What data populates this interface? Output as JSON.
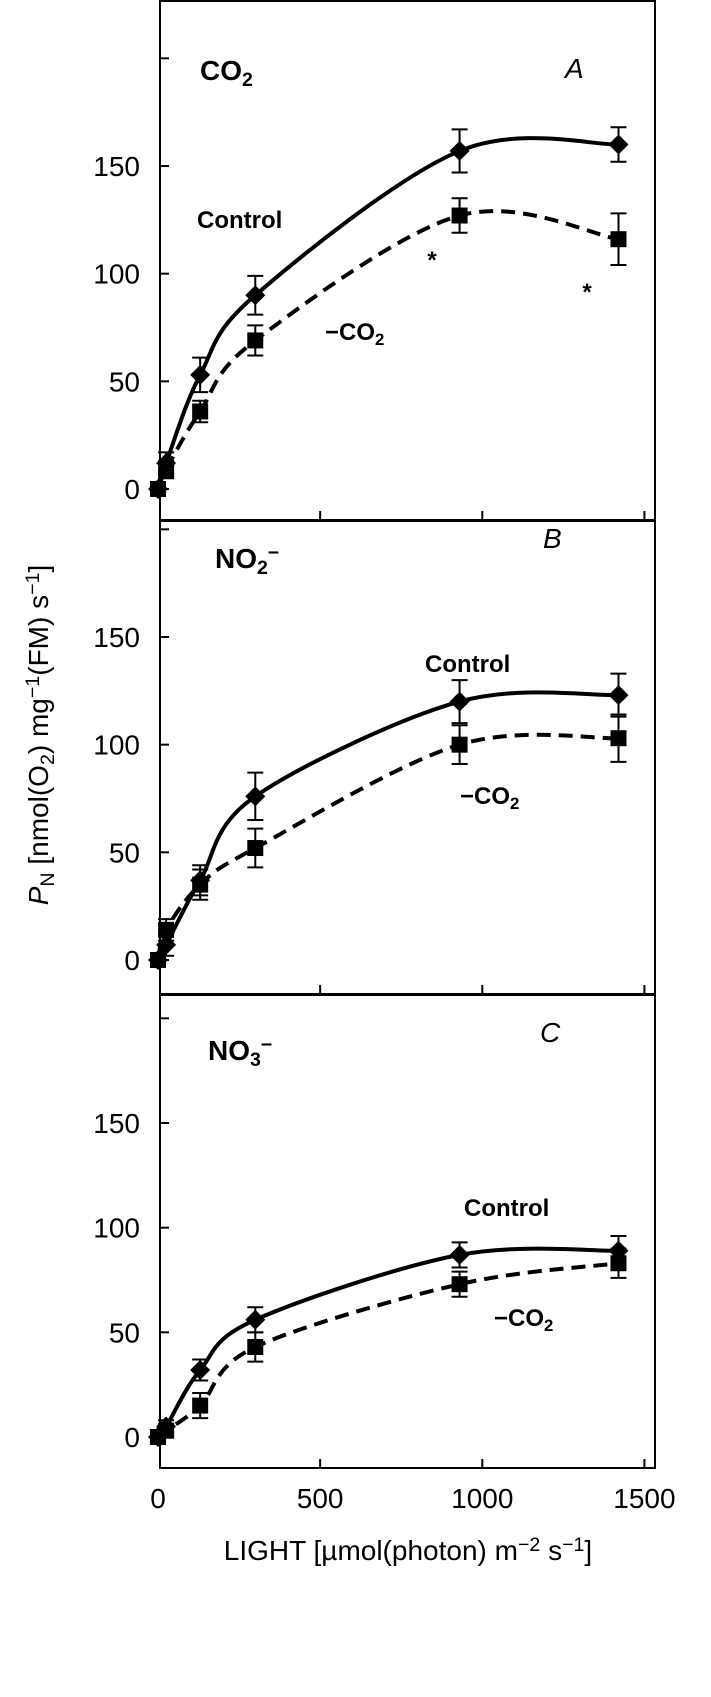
{
  "chart_data": {
    "type": "line",
    "xlabel": "LIGHT [µmol(photon) m⁻² s⁻¹]",
    "ylabel": "Pₙ [nmol(O₂) mg⁻¹(FM) s⁻¹]",
    "xlim": [
      0,
      1500
    ],
    "ylim": [
      0,
      150
    ],
    "x_ticks": [
      "0",
      "500",
      "1000",
      "1500"
    ],
    "y_ticks": [
      "0",
      "50",
      "100",
      "150"
    ],
    "legend": "none",
    "panels": [
      {
        "letter": "A",
        "title": "CO₂",
        "series": [
          {
            "name": "Control",
            "marker": "diamond",
            "line": "solid",
            "x": [
              0,
              25,
              130,
              300,
              930,
              1420
            ],
            "y": [
              0,
              12,
              53,
              90,
              157,
              160
            ],
            "err": [
              0,
              5,
              8,
              9,
              10,
              8
            ]
          },
          {
            "name": "−CO₂",
            "marker": "square",
            "line": "dashed",
            "x": [
              0,
              25,
              130,
              300,
              930,
              1420
            ],
            "y": [
              0,
              9,
              36,
              69,
              127,
              116
            ],
            "err": [
              0,
              4,
              5,
              7,
              8,
              12
            ]
          }
        ],
        "annotations": [
          "*",
          "*"
        ]
      },
      {
        "letter": "B",
        "title": "NO₂⁻",
        "series": [
          {
            "name": "Control",
            "marker": "diamond",
            "line": "solid",
            "x": [
              0,
              25,
              130,
              300,
              930,
              1420
            ],
            "y": [
              0,
              7,
              37,
              76,
              120,
              123
            ],
            "err": [
              0,
              5,
              7,
              11,
              10,
              10
            ]
          },
          {
            "name": "−CO₂",
            "marker": "square",
            "line": "dashed",
            "x": [
              0,
              25,
              130,
              300,
              930,
              1420
            ],
            "y": [
              0,
              14,
              35,
              52,
              100,
              103
            ],
            "err": [
              0,
              5,
              7,
              9,
              9,
              11
            ]
          }
        ]
      },
      {
        "letter": "C",
        "title": "NO₃⁻",
        "series": [
          {
            "name": "Control",
            "marker": "diamond",
            "line": "solid",
            "x": [
              0,
              25,
              130,
              300,
              930,
              1420
            ],
            "y": [
              0,
              5,
              32,
              56,
              87,
              89
            ],
            "err": [
              0,
              3,
              5,
              6,
              6,
              7
            ]
          },
          {
            "name": "−CO₂",
            "marker": "square",
            "line": "dashed",
            "x": [
              0,
              25,
              130,
              300,
              930,
              1420
            ],
            "y": [
              0,
              3,
              15,
              43,
              73,
              83
            ],
            "err": [
              0,
              3,
              6,
              7,
              6,
              7
            ]
          }
        ]
      }
    ]
  }
}
